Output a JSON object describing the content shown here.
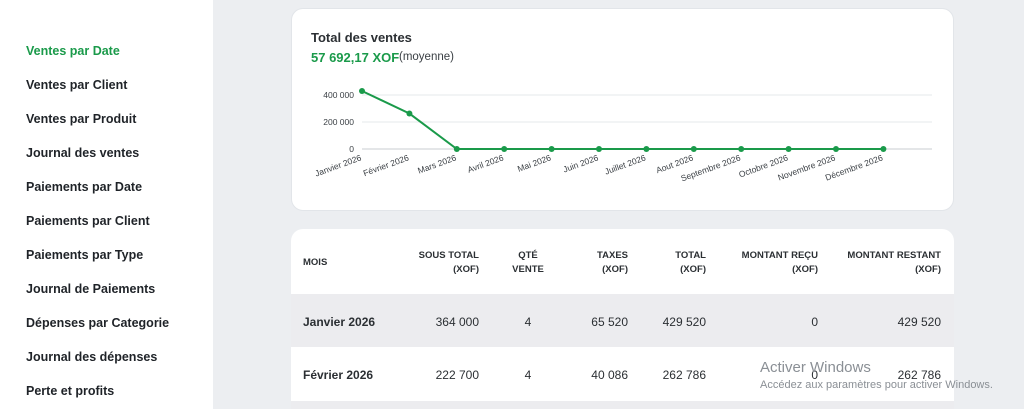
{
  "sidebar": {
    "items": [
      {
        "label": "Ventes par Date",
        "active": true
      },
      {
        "label": "Ventes par Client",
        "active": false
      },
      {
        "label": "Ventes par Produit",
        "active": false
      },
      {
        "label": "Journal des ventes",
        "active": false
      },
      {
        "label": "Paiements par Date",
        "active": false
      },
      {
        "label": "Paiements par Client",
        "active": false
      },
      {
        "label": "Paiements par Type",
        "active": false
      },
      {
        "label": "Journal de Paiements",
        "active": false
      },
      {
        "label": "Dépenses par Categorie",
        "active": false
      },
      {
        "label": "Journal des dépenses",
        "active": false
      },
      {
        "label": "Perte et profits",
        "active": false
      }
    ]
  },
  "summary": {
    "title": "Total des ventes",
    "total": "57 692,17 XOF",
    "average_label": "(moyenne)"
  },
  "colors": {
    "accent": "#1a9a4a"
  },
  "chart_data": {
    "type": "line",
    "title": "",
    "xlabel": "",
    "ylabel": "",
    "categories": [
      "Janvier 2026",
      "Février 2026",
      "Mars 2026",
      "Avril 2026",
      "Mai 2026",
      "Juin 2026",
      "Juillet 2026",
      "Aout 2026",
      "Septembre 2026",
      "Octobre 2026",
      "Novembre 2026",
      "Décembre 2026"
    ],
    "values": [
      429520,
      262786,
      0,
      0,
      0,
      0,
      0,
      0,
      0,
      0,
      0,
      0
    ],
    "ylim": [
      0,
      400000
    ],
    "yticks": [
      0,
      200000,
      400000
    ],
    "ytick_labels": [
      "0",
      "200 000",
      "400 000"
    ],
    "grid": true,
    "color": "#1a9a4a"
  },
  "table": {
    "headers": [
      {
        "line1": "MOIS",
        "line2": ""
      },
      {
        "line1": "SOUS TOTAL",
        "line2": "(XOF)"
      },
      {
        "line1": "QTÉ",
        "line2": "VENTE"
      },
      {
        "line1": "TAXES",
        "line2": "(XOF)"
      },
      {
        "line1": "TOTAL",
        "line2": "(XOF)"
      },
      {
        "line1": "MONTANT REÇU",
        "line2": "(XOF)"
      },
      {
        "line1": "MONTANT RESTANT",
        "line2": "(XOF)"
      }
    ],
    "rows": [
      [
        "Janvier 2026",
        "364 000",
        "4",
        "65 520",
        "429 520",
        "0",
        "429 520"
      ],
      [
        "Février 2026",
        "222 700",
        "4",
        "40 086",
        "262 786",
        "0",
        "262 786"
      ]
    ]
  },
  "watermark": {
    "line1": "Activer Windows",
    "line2": "Accédez aux paramètres pour activer Windows."
  }
}
